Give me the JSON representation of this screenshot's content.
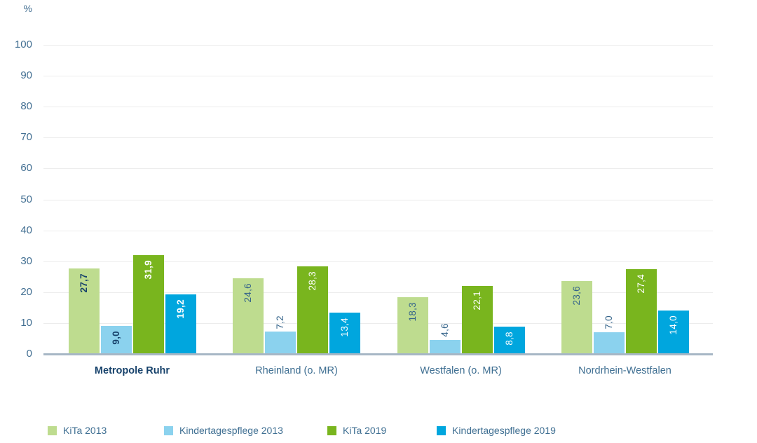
{
  "chart_data": {
    "type": "bar",
    "title": "",
    "unit_label": "%",
    "categories": [
      "Metropole Ruhr",
      "Rheinland (o. MR)",
      "Westfalen (o. MR)",
      "Nordrhein-Westfalen"
    ],
    "emphasized_category": "Metropole Ruhr",
    "series": [
      {
        "name": "KiTa 2013",
        "color": "#bedc8f",
        "label_color_inside": "#17426b",
        "values": [
          27.7,
          24.6,
          18.3,
          23.6
        ],
        "labels": [
          "27,7",
          "24,6",
          "18,3",
          "23,6"
        ]
      },
      {
        "name": "Kindertagespflege 2013",
        "color": "#8bd2ee",
        "label_color_inside": "#17426b",
        "values": [
          9.0,
          7.2,
          4.6,
          7.0
        ],
        "labels": [
          "9,0",
          "7,2",
          "4,6",
          "7,0"
        ]
      },
      {
        "name": "KiTa 2019",
        "color": "#79b51e",
        "label_color_inside": "#ffffff",
        "values": [
          31.9,
          28.3,
          22.1,
          27.4
        ],
        "labels": [
          "31,9",
          "28,3",
          "22,1",
          "27,4"
        ]
      },
      {
        "name": "Kindertagespflege 2019",
        "color": "#00a6de",
        "label_color_inside": "#ffffff",
        "values": [
          19.2,
          13.4,
          8.8,
          14.0
        ],
        "labels": [
          "19,2",
          "13,4",
          "8,8",
          "14,0"
        ]
      }
    ],
    "y_axis": {
      "min": 0,
      "max": 100,
      "tick_step": 10,
      "tick_labels": [
        "0",
        "10",
        "20",
        "30",
        "40",
        "50",
        "60",
        "70",
        "80",
        "90",
        "100"
      ]
    },
    "grid": true,
    "legend_position": "bottom",
    "legend_entries": [
      "KiTa 2013",
      "Kindertagespflege 2013",
      "KiTa 2019",
      "Kindertagespflege 2019"
    ]
  },
  "colors": {
    "axis_text": "#426f92",
    "emphasis_text": "#17426b",
    "regular_value_text": "#35648a",
    "gridline": "#ececec",
    "baseline": "#a7b7c5",
    "background": "#ffffff"
  }
}
